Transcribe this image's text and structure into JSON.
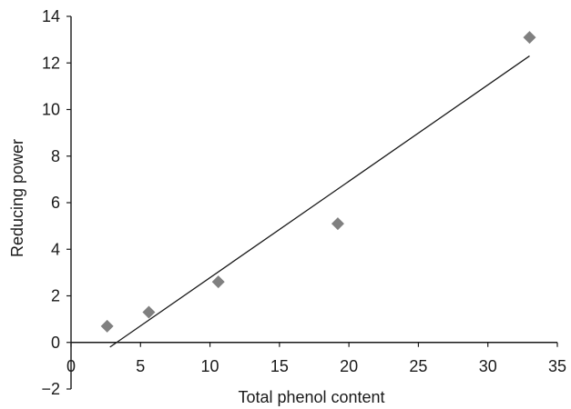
{
  "chart_data": {
    "type": "scatter",
    "xlabel": "Total phenol content",
    "ylabel": "Reducing power",
    "xlim": [
      0,
      35
    ],
    "ylim": [
      -2,
      14
    ],
    "x_ticks": [
      "0",
      "5",
      "10",
      "15",
      "20",
      "25",
      "30",
      "35"
    ],
    "y_ticks": [
      "−2",
      "0",
      "2",
      "4",
      "6",
      "8",
      "10",
      "12",
      "14"
    ],
    "grid": false,
    "legend": "none",
    "marker_color": "#808080",
    "line_color": "#1a1a1a",
    "series": [
      {
        "points": [
          {
            "x": 2.6,
            "y": 0.7
          },
          {
            "x": 5.6,
            "y": 1.3
          },
          {
            "x": 10.6,
            "y": 2.6
          },
          {
            "x": 19.2,
            "y": 5.1
          },
          {
            "x": 33.0,
            "y": 13.1
          }
        ]
      }
    ],
    "trendline": {
      "points": [
        {
          "x": 2.8,
          "y": -0.2
        },
        {
          "x": 33.0,
          "y": 12.3
        }
      ]
    }
  }
}
